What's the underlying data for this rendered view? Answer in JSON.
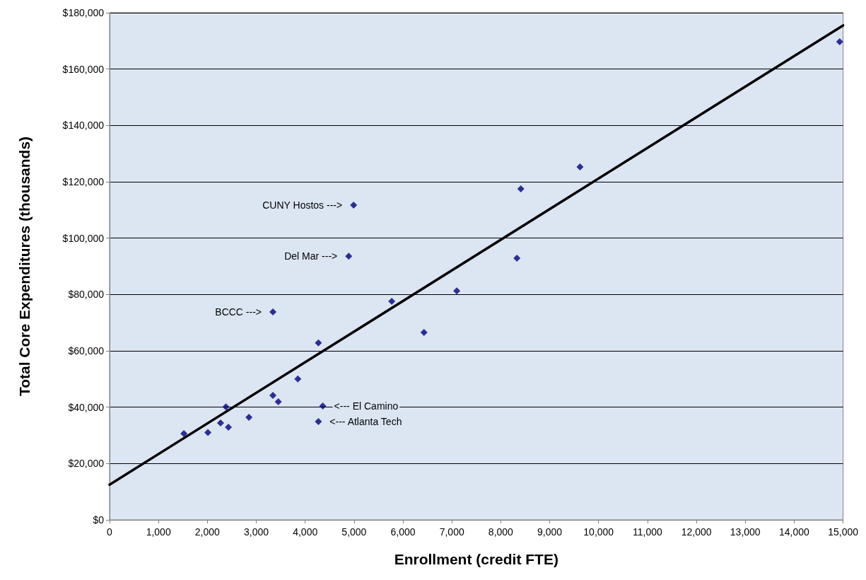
{
  "chart_data": {
    "type": "scatter",
    "xlabel": "Enrollment (credit FTE)",
    "ylabel": "Total Core Expenditures (thousands)",
    "xlim": [
      0,
      15000
    ],
    "ylim": [
      0,
      180000
    ],
    "xticks": [
      0,
      {
        "value": 1000,
        "label": "1,000"
      },
      {
        "value": 2000,
        "label": "2,000"
      },
      {
        "value": 3000,
        "label": "3,000"
      },
      {
        "value": 4000,
        "label": "4,000"
      },
      {
        "value": 5000,
        "label": "5,000"
      },
      {
        "value": 6000,
        "label": "6,000"
      },
      {
        "value": 7000,
        "label": "7,000"
      },
      {
        "value": 8000,
        "label": "8,000"
      },
      {
        "value": 9000,
        "label": "9,000"
      },
      {
        "value": 10000,
        "label": "10,000"
      },
      {
        "value": 11000,
        "label": "11,000"
      },
      {
        "value": 12000,
        "label": "12,000"
      },
      {
        "value": 13000,
        "label": "13,000"
      },
      {
        "value": 14000,
        "label": "14,000"
      },
      {
        "value": 15000,
        "label": "15,000"
      }
    ],
    "yticks": [
      {
        "value": 0,
        "label": "$0"
      },
      {
        "value": 20000,
        "label": "$20,000"
      },
      {
        "value": 40000,
        "label": "$40,000"
      },
      {
        "value": 60000,
        "label": "$60,000"
      },
      {
        "value": 80000,
        "label": "$80,000"
      },
      {
        "value": 100000,
        "label": "$100,000"
      },
      {
        "value": 120000,
        "label": "$120,000"
      },
      {
        "value": 140000,
        "label": "$140,000"
      },
      {
        "value": 160000,
        "label": "$160,000"
      },
      {
        "value": 180000,
        "label": "$180,000"
      }
    ],
    "grid": "y",
    "series": [
      {
        "color": "#000080",
        "marker": "diamond",
        "x": [
          1520,
          2010,
          2270,
          2380,
          2430,
          2850,
          3340,
          3450,
          3850,
          3340,
          4270,
          4270,
          4360,
          4890,
          4990,
          5770,
          6430,
          7100,
          8410,
          8330,
          9620,
          14930
        ],
        "values": [
          30600,
          31000,
          34400,
          40100,
          32900,
          36400,
          44200,
          41900,
          50000,
          73800,
          62800,
          34900,
          40400,
          93600,
          111700,
          77600,
          66500,
          81300,
          117500,
          92900,
          125300,
          169700
        ]
      },
      {
        "type": "line",
        "color": "#000000",
        "marker": "none",
        "x": [
          0,
          15000
        ],
        "values": [
          12500,
          175500
        ]
      }
    ],
    "annotations": [
      {
        "text": "CUNY Hostos --->",
        "x": 4990,
        "y": 111700
      },
      {
        "text": "Del Mar --->",
        "x": 4890,
        "y": 93600
      },
      {
        "text": "BCCC --->",
        "x": 3340,
        "y": 73800
      },
      {
        "text": "<--- El Camino",
        "x": 4360,
        "y": 40400
      },
      {
        "text": "<--- Atlanta Tech",
        "x": 4270,
        "y": 34900
      }
    ]
  }
}
